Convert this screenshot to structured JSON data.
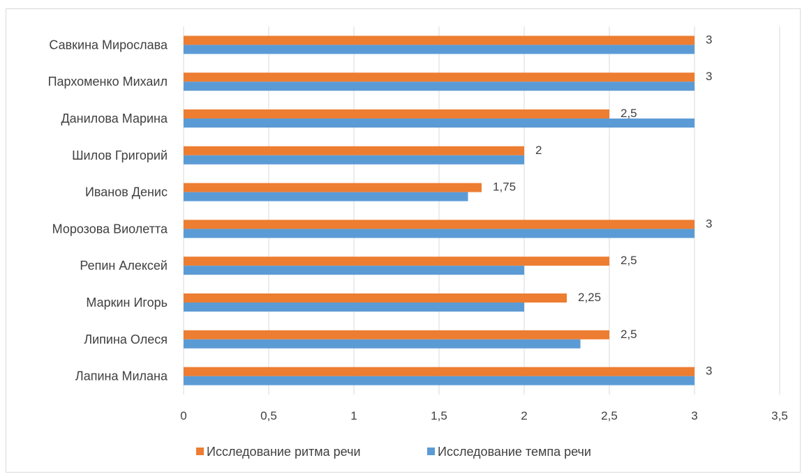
{
  "chart_data": {
    "type": "bar",
    "orientation": "horizontal",
    "categories": [
      "Лапина Милана",
      "Липина Олеся",
      "Маркин Игорь",
      "Репин Алексей",
      "Морозова Виолетта",
      "Иванов Денис",
      "Шилов Григорий",
      "Данилова Марина",
      "Пархоменко Михаил",
      "Савкина Мирослава"
    ],
    "series": [
      {
        "name": "Исследование ритма речи",
        "color": "#ed7d31",
        "values": [
          3,
          2.5,
          2.25,
          2.5,
          3,
          1.75,
          2,
          2.5,
          3,
          3
        ],
        "data_labels": [
          "3",
          "2,5",
          "2,25",
          "2,5",
          "3",
          "1,75",
          "2",
          "2,5",
          "3",
          "3"
        ]
      },
      {
        "name": "Исследование темпа речи",
        "color": "#5b9bd5",
        "values": [
          3,
          2.33,
          2,
          2,
          3,
          1.67,
          2,
          3,
          3,
          3
        ]
      }
    ],
    "xlim": [
      0,
      3.5
    ],
    "x_ticks": [
      0,
      0.5,
      1,
      1.5,
      2,
      2.5,
      3,
      3.5
    ],
    "x_tick_labels": [
      "0",
      "0,5",
      "1",
      "1,5",
      "2",
      "2,5",
      "3",
      "3,5"
    ],
    "grid": "vertical",
    "legend_position": "bottom",
    "title": "",
    "xlabel": "",
    "ylabel": ""
  }
}
